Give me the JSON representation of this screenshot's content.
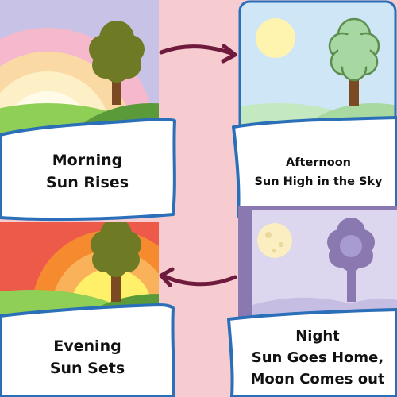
{
  "panels": {
    "morning": {
      "title": "Morning",
      "subtitle": "Sun Rises"
    },
    "afternoon": {
      "title": "Afternoon",
      "subtitle": "Sun High in the Sky"
    },
    "evening": {
      "title": "Evening",
      "subtitle": "Sun Sets"
    },
    "night": {
      "title": "Night",
      "subtitle_line1": "Sun Goes Home,",
      "subtitle_line2": "Moon Comes out"
    }
  },
  "colors": {
    "background": "#f6ccd0",
    "card_border": "#2a6fb8",
    "arrow": "#6e1a3c",
    "tree_canopy": "#6f7a25",
    "tree_trunk": "#7a4a22",
    "morning_sky": "#c8c3e6",
    "afternoon_sky": "#cfe6f7",
    "evening_sky": "#ee5a4a",
    "night_frame": "#8a79b0"
  }
}
